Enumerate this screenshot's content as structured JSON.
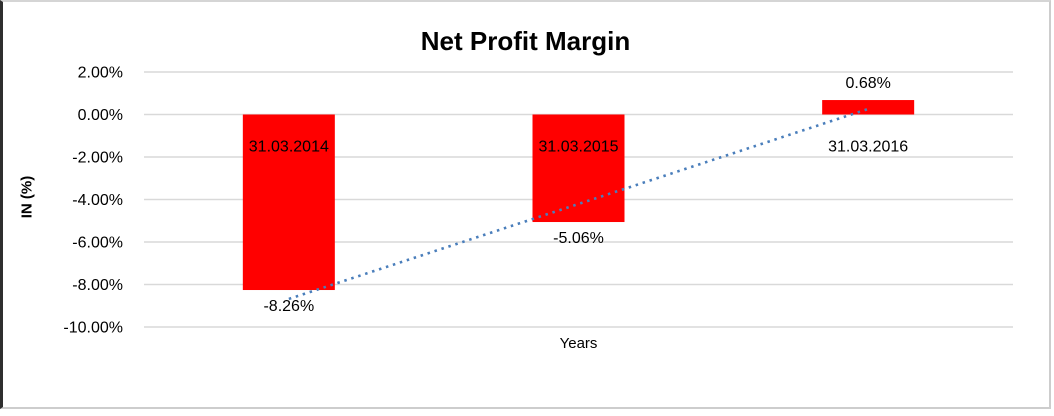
{
  "chart_data": {
    "type": "bar",
    "title": "Net Profit Margin",
    "xlabel": "Years",
    "ylabel": "IN (%)",
    "categories": [
      "31.03.2014",
      "31.03.2015",
      "31.03.2016"
    ],
    "series": [
      {
        "name": "Net Profit Margin",
        "values": [
          -8.26,
          -5.06,
          0.68
        ]
      }
    ],
    "data_labels": [
      "-8.26%",
      "-5.06%",
      "0.68%"
    ],
    "y_ticks": [
      {
        "value": 2,
        "label": "2.00%"
      },
      {
        "value": 0,
        "label": "0.00%"
      },
      {
        "value": -2,
        "label": "-2.00%"
      },
      {
        "value": -4,
        "label": "-4.00%"
      },
      {
        "value": -6,
        "label": "-6.00%"
      },
      {
        "value": -8,
        "label": "-8.00%"
      },
      {
        "value": -10,
        "label": "-10.00%"
      }
    ],
    "ylim": [
      -10,
      2
    ],
    "grid": true,
    "legend": false,
    "colors": {
      "bar": "#FF0000",
      "gridline": "#D9D9D9",
      "text": "#000000",
      "trendline": "#4A7EBB"
    },
    "trendline": {
      "type": "linear",
      "style": "dotted",
      "start_value": -8.68,
      "end_value": 0.26
    }
  }
}
